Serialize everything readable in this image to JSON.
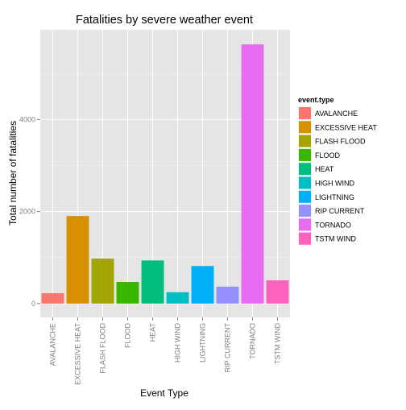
{
  "chart_data": {
    "type": "bar",
    "title": "Fatalities by severe weather event",
    "xlabel": "Event Type",
    "ylabel": "Total number of fatalities",
    "categories": [
      "AVALANCHE",
      "EXCESSIVE HEAT",
      "FLASH FLOOD",
      "FLOOD",
      "HEAT",
      "HIGH WIND",
      "LIGHTNING",
      "RIP CURRENT",
      "TORNADO",
      "TSTM WIND"
    ],
    "values": [
      224,
      1903,
      978,
      470,
      937,
      248,
      816,
      368,
      5633,
      504
    ],
    "colors": [
      "#F8766D",
      "#D89000",
      "#A3A500",
      "#39B600",
      "#00BF7D",
      "#00BFC4",
      "#00B0F6",
      "#9590FF",
      "#E76BF3",
      "#FF62BC"
    ],
    "ylim": [
      -300,
      5950
    ],
    "yticks": [
      0,
      2000,
      4000
    ],
    "grid": true,
    "background": "#E5E5E5",
    "legend": {
      "title": "event.type",
      "position": "right"
    }
  }
}
